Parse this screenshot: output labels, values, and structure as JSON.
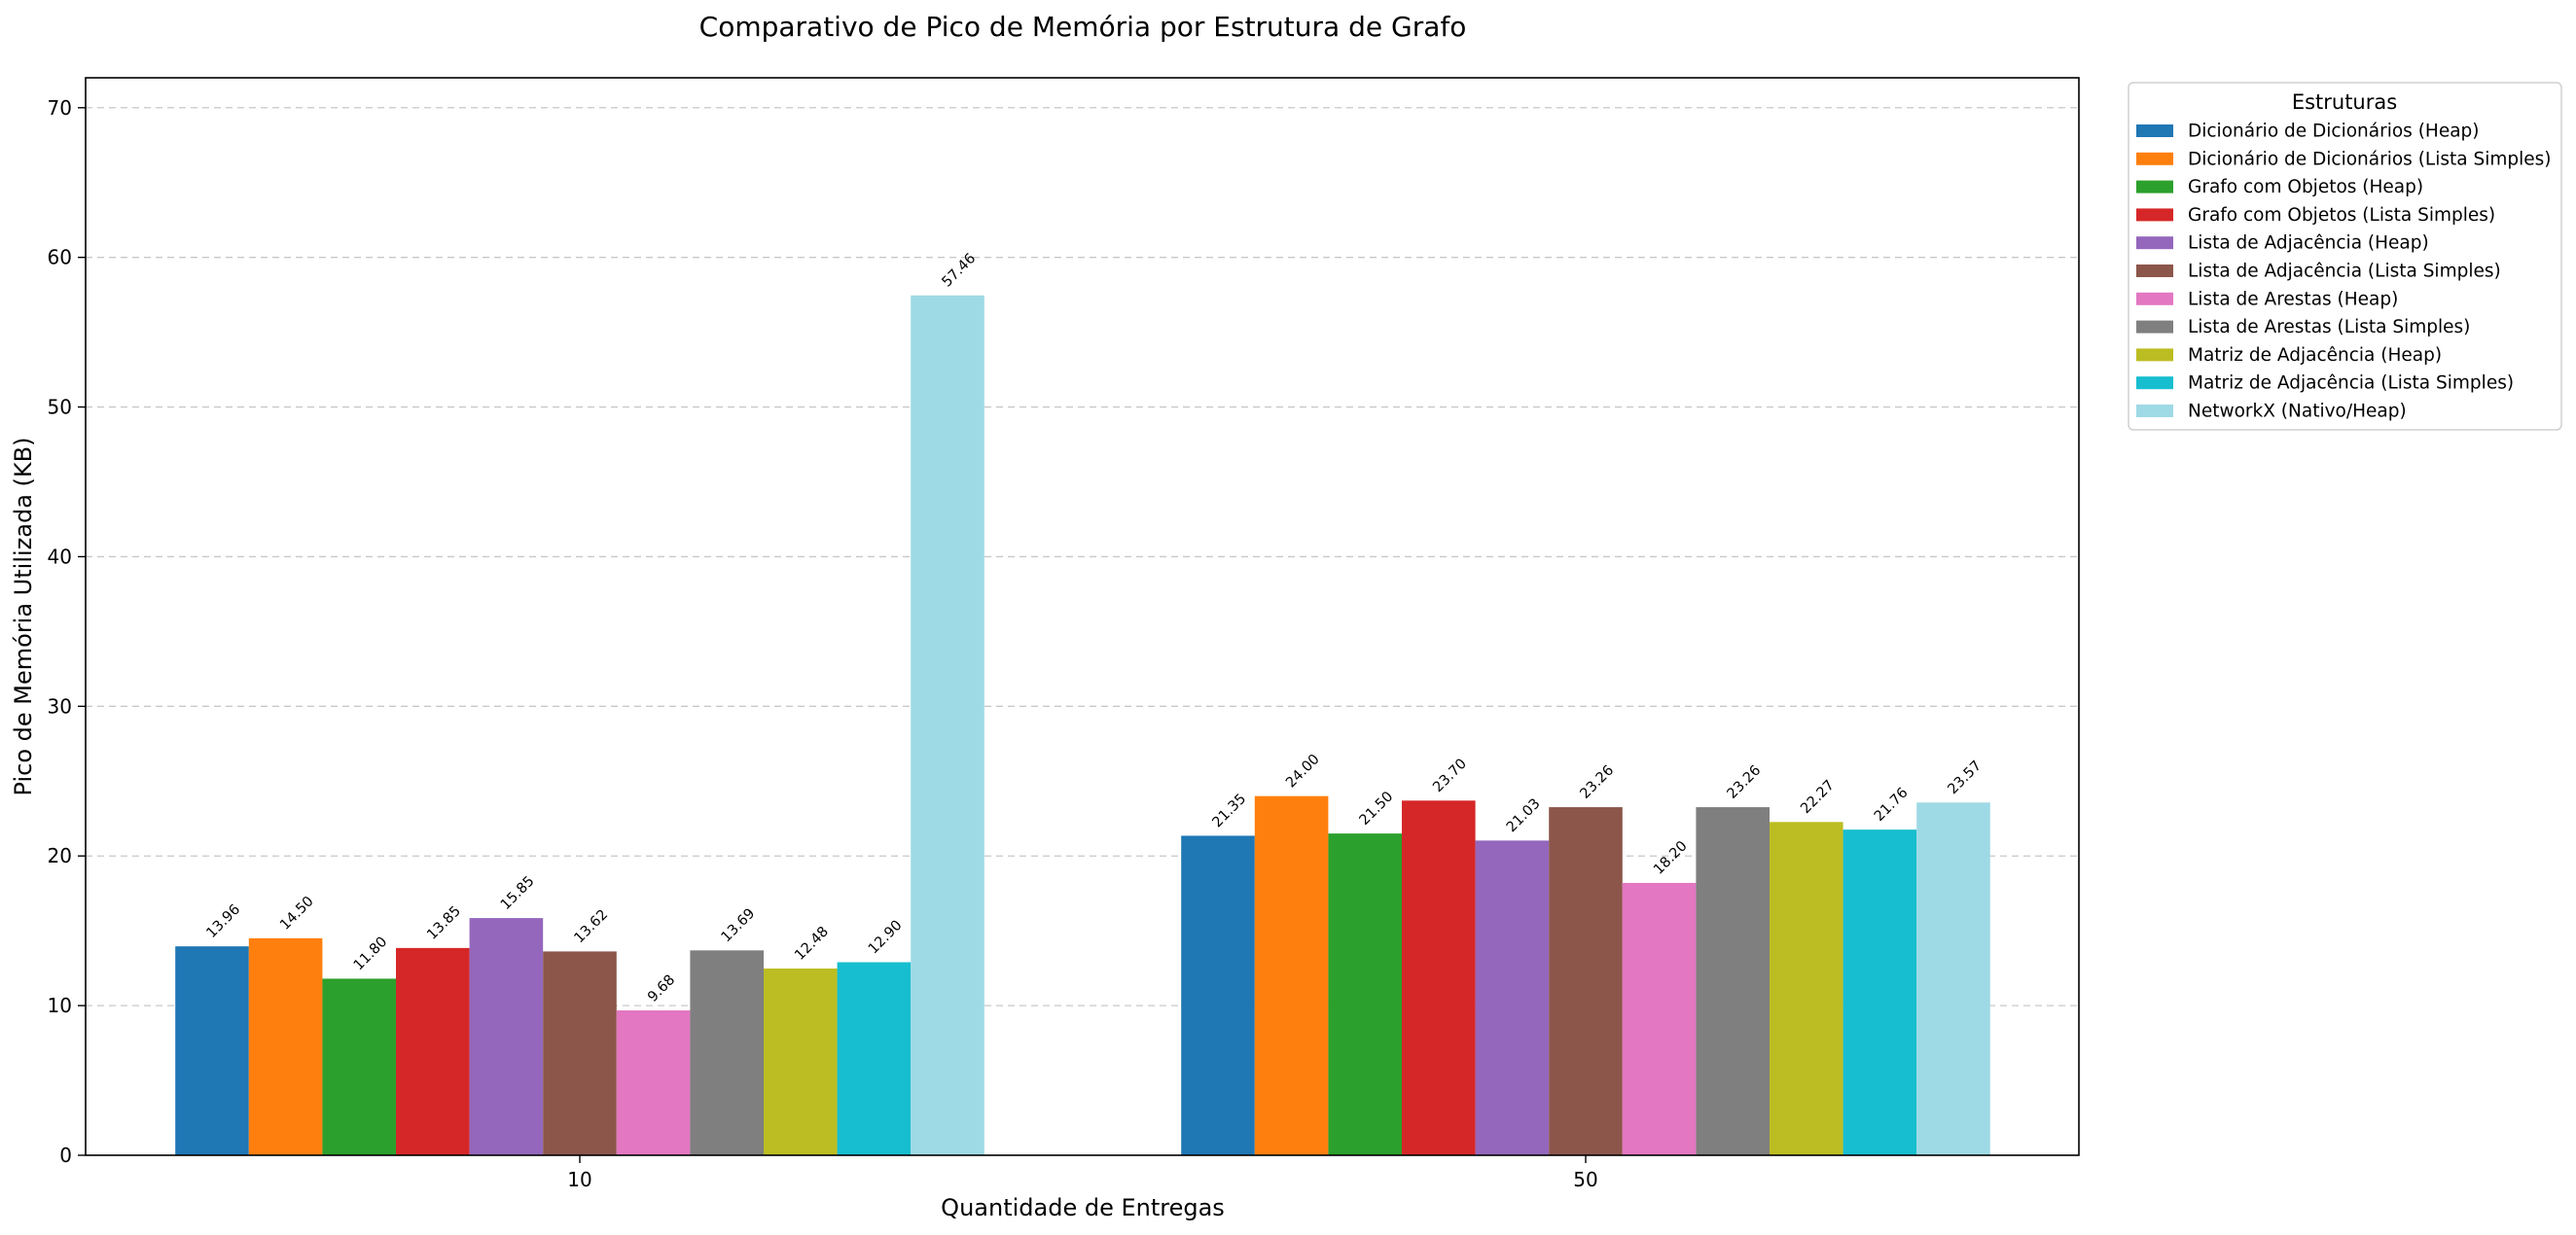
{
  "chart_data": {
    "type": "bar",
    "title": "Comparativo de Pico de Memória por Estrutura de Grafo",
    "xlabel": "Quantidade de Entregas",
    "ylabel": "Pico de Memória Utilizada (KB)",
    "categories": [
      "10",
      "50"
    ],
    "ylim": [
      0,
      72
    ],
    "yticks": [
      0,
      10,
      20,
      30,
      40,
      50,
      60,
      70
    ],
    "grid": "y dashed",
    "legend": {
      "title": "Estruturas",
      "placement": "outside right, top"
    },
    "series": [
      {
        "name": "Dicionário de Dicionários (Heap)",
        "color": "#1f77b4",
        "values": [
          13.96,
          21.35
        ],
        "labels": [
          "13.96",
          "21.35"
        ]
      },
      {
        "name": "Dicionário de Dicionários (Lista Simples)",
        "color": "#ff7f0e",
        "values": [
          14.5,
          24.0
        ],
        "labels": [
          "14.50",
          "24.00"
        ]
      },
      {
        "name": "Grafo com Objetos (Heap)",
        "color": "#2ca02c",
        "values": [
          11.8,
          21.5
        ],
        "labels": [
          "11.80",
          "21.50"
        ]
      },
      {
        "name": "Grafo com Objetos (Lista Simples)",
        "color": "#d62728",
        "values": [
          13.85,
          23.7
        ],
        "labels": [
          "13.85",
          "23.70"
        ]
      },
      {
        "name": "Lista de Adjacência (Heap)",
        "color": "#9467bd",
        "values": [
          15.85,
          21.03
        ],
        "labels": [
          "15.85",
          "21.03"
        ]
      },
      {
        "name": "Lista de Adjacência (Lista Simples)",
        "color": "#8c564b",
        "values": [
          13.62,
          23.26
        ],
        "labels": [
          "13.62",
          "23.26"
        ]
      },
      {
        "name": "Lista de Arestas (Heap)",
        "color": "#e377c2",
        "values": [
          9.68,
          18.2
        ],
        "labels": [
          "9.68",
          "18.20"
        ]
      },
      {
        "name": "Lista de Arestas (Lista Simples)",
        "color": "#7f7f7f",
        "values": [
          13.69,
          23.26
        ],
        "labels": [
          "13.69",
          "23.26"
        ]
      },
      {
        "name": "Matriz de Adjacência (Heap)",
        "color": "#bcbd22",
        "values": [
          12.48,
          22.27
        ],
        "labels": [
          "12.48",
          "22.27"
        ]
      },
      {
        "name": "Matriz de Adjacência (Lista Simples)",
        "color": "#17becf",
        "values": [
          12.9,
          21.76
        ],
        "labels": [
          "12.90",
          "21.76"
        ]
      },
      {
        "name": "NetworkX (Nativo/Heap)",
        "color": "#9edae5",
        "values": [
          57.46,
          23.57
        ],
        "labels": [
          "57.46",
          "23.57"
        ]
      }
    ]
  }
}
